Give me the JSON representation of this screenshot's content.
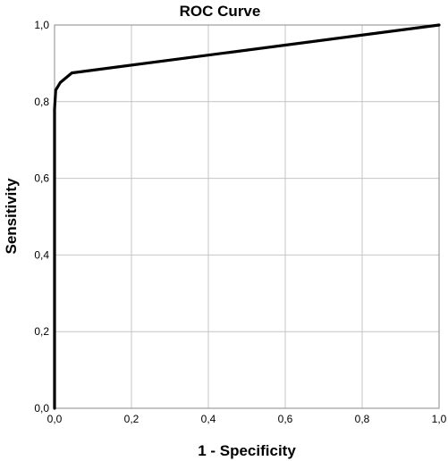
{
  "chart_data": {
    "type": "line",
    "title": "ROC Curve",
    "xlabel": "1 - Specificity",
    "ylabel": "Sensitivity",
    "xlim": [
      0,
      1
    ],
    "ylim": [
      0,
      1
    ],
    "grid": true,
    "x_ticks": [
      "0,0",
      "0,2",
      "0,4",
      "0,6",
      "0,8",
      "1,0"
    ],
    "y_ticks": [
      "0,0",
      "0,2",
      "0,4",
      "0,6",
      "0,8",
      "1,0"
    ],
    "series": [
      {
        "color": "#000000",
        "points": [
          [
            0.0,
            0.0
          ],
          [
            0.0,
            0.78
          ],
          [
            0.003,
            0.83
          ],
          [
            0.015,
            0.85
          ],
          [
            0.045,
            0.875
          ],
          [
            1.0,
            1.0
          ]
        ]
      }
    ]
  }
}
